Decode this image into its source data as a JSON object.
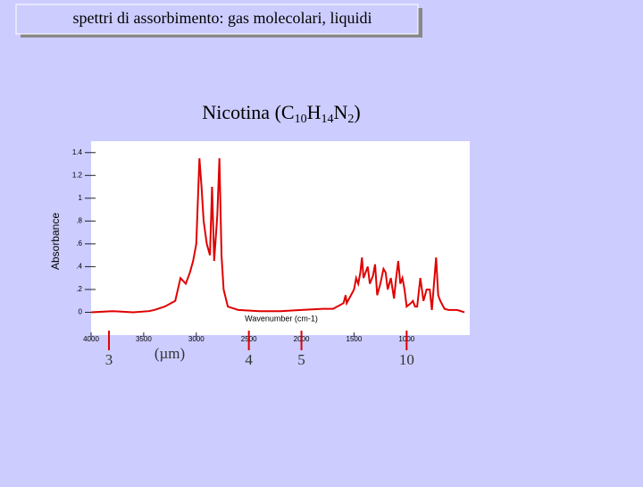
{
  "header": {
    "title": "spettri di assorbimento: gas molecolari, liquidi"
  },
  "chart_data": {
    "type": "line",
    "title": [
      "Nicotina (C",
      "10",
      "H",
      "14",
      "N",
      "2",
      ")"
    ],
    "y_label": "Absorbance",
    "x_label": "Wavenumber (cm-1)",
    "xlim": [
      4000,
      400
    ],
    "xticks": [
      4000,
      3500,
      3000,
      2500,
      2000,
      1500,
      1000
    ],
    "ylim": [
      -0.2,
      1.5
    ],
    "yticks": [
      0,
      {
        "value": 0.2,
        "label": ".2"
      },
      {
        "value": 0.4,
        "label": ".4"
      },
      {
        "value": 0.6,
        "label": ".6"
      },
      {
        "value": 0.8,
        "label": ".8"
      },
      1,
      1.2,
      1.4
    ],
    "micron_label": "(µm)",
    "micron_ticks": [
      {
        "value": 3830,
        "label": "3"
      },
      {
        "value": 2500,
        "label": "4"
      },
      {
        "value": 2000,
        "label": "5"
      },
      {
        "value": 1000,
        "label": "10"
      }
    ],
    "series": [
      {
        "name": "Nicotina",
        "color": "#e00000",
        "x": [
          4000,
          3800,
          3600,
          3450,
          3400,
          3300,
          3200,
          3150,
          3100,
          3060,
          3030,
          3000,
          2970,
          2950,
          2930,
          2900,
          2870,
          2850,
          2830,
          2800,
          2780,
          2760,
          2740,
          2700,
          2600,
          2400,
          2200,
          2000,
          1800,
          1700,
          1600,
          1580,
          1570,
          1500,
          1480,
          1460,
          1440,
          1425,
          1410,
          1390,
          1370,
          1350,
          1320,
          1300,
          1280,
          1250,
          1220,
          1200,
          1180,
          1150,
          1120,
          1100,
          1080,
          1060,
          1040,
          1020,
          1000,
          960,
          940,
          920,
          900,
          870,
          840,
          810,
          780,
          760,
          720,
          700,
          680,
          640,
          600,
          520,
          450
        ],
        "values": [
          0.0,
          0.01,
          0.0,
          0.01,
          0.02,
          0.05,
          0.1,
          0.3,
          0.25,
          0.35,
          0.45,
          0.6,
          1.35,
          1.1,
          0.8,
          0.6,
          0.5,
          1.1,
          0.45,
          0.85,
          1.35,
          0.5,
          0.2,
          0.05,
          0.02,
          0.01,
          0.01,
          0.02,
          0.03,
          0.03,
          0.08,
          0.15,
          0.08,
          0.2,
          0.3,
          0.25,
          0.35,
          0.48,
          0.3,
          0.35,
          0.4,
          0.25,
          0.32,
          0.42,
          0.15,
          0.25,
          0.38,
          0.35,
          0.2,
          0.3,
          0.12,
          0.3,
          0.45,
          0.25,
          0.3,
          0.2,
          0.05,
          0.08,
          0.1,
          0.05,
          0.05,
          0.3,
          0.1,
          0.2,
          0.2,
          0.02,
          0.48,
          0.15,
          0.1,
          0.03,
          0.02,
          0.02,
          0.0
        ]
      }
    ]
  }
}
